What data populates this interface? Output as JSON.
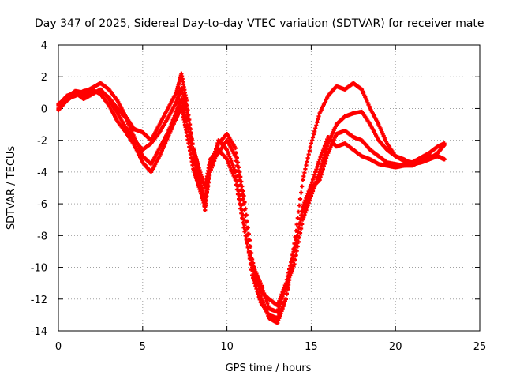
{
  "chart_data": {
    "type": "scatter",
    "title": "Day 347 of 2025, Sidereal Day-to-day VTEC variation (SDTVAR) for receiver mate",
    "xlabel": "GPS time / hours",
    "ylabel": "SDTVAR / TECUs",
    "xlim": [
      0,
      25
    ],
    "ylim": [
      -14,
      4
    ],
    "xticks": [
      0,
      5,
      10,
      15,
      20,
      25
    ],
    "yticks": [
      -14,
      -12,
      -10,
      -8,
      -6,
      -4,
      -2,
      0,
      2,
      4
    ],
    "grid": true,
    "marker": "plus",
    "color": "#ff0000",
    "series": [
      {
        "x": [
          0.0,
          0.5,
          1.0,
          1.5,
          2.0,
          2.5,
          3.0,
          3.5,
          4.0,
          4.5,
          5.0,
          5.5,
          6.0,
          6.5,
          7.0,
          7.3,
          7.6,
          8.0,
          8.3,
          8.7,
          9.0,
          9.5,
          10.0,
          10.5,
          11.0,
          11.5,
          12.0,
          12.5,
          13.0,
          13.5,
          14.0,
          14.5,
          15.0,
          15.5,
          16.0,
          16.5,
          17.0,
          17.5,
          18.0,
          18.5,
          19.0,
          19.5,
          20.0,
          20.5,
          21.0,
          21.5,
          22.0,
          22.5,
          22.9
        ],
        "y": [
          0.0,
          0.7,
          1.1,
          1.0,
          1.3,
          1.6,
          1.2,
          0.5,
          -0.5,
          -1.3,
          -1.5,
          -2.0,
          -1.0,
          0.0,
          1.0,
          2.2,
          0.5,
          -2.5,
          -4.0,
          -6.4,
          -3.5,
          -2.2,
          -1.6,
          -2.5,
          -5.5,
          -9.5,
          -11.8,
          -13.2,
          -13.5,
          -12.0,
          -8.5,
          -4.5,
          -2.2,
          -0.3,
          0.8,
          1.4,
          1.2,
          1.6,
          1.2,
          0.0,
          -1.0,
          -2.2,
          -3.0,
          -3.2,
          -3.5,
          -3.4,
          -3.2,
          -2.8,
          -2.3
        ]
      },
      {
        "x": [
          0.0,
          0.5,
          1.0,
          1.5,
          2.0,
          2.5,
          3.0,
          3.5,
          4.0,
          4.5,
          5.0,
          5.5,
          6.0,
          6.5,
          7.0,
          7.3,
          7.6,
          8.0,
          8.3,
          8.7,
          9.0,
          9.5,
          10.0,
          10.5,
          11.0,
          11.5,
          12.0,
          12.5,
          13.0,
          13.5,
          14.0,
          14.5,
          15.0,
          15.5,
          16.0,
          16.5,
          17.0,
          17.5,
          18.0,
          18.5,
          19.0,
          19.5,
          20.0,
          20.5,
          21.0,
          21.5,
          22.0,
          22.5,
          22.9
        ],
        "y": [
          0.2,
          0.8,
          1.0,
          0.6,
          0.9,
          1.2,
          0.6,
          -0.3,
          -1.2,
          -2.0,
          -2.6,
          -2.2,
          -1.5,
          -0.6,
          0.4,
          1.3,
          0.0,
          -2.5,
          -3.6,
          -5.0,
          -3.2,
          -2.8,
          -2.0,
          -3.0,
          -6.0,
          -9.8,
          -11.0,
          -12.6,
          -12.8,
          -11.2,
          -9.8,
          -7.0,
          -5.5,
          -4.0,
          -2.2,
          -1.0,
          -0.5,
          -0.3,
          -0.2,
          -1.0,
          -2.0,
          -2.6,
          -3.0,
          -3.3,
          -3.4,
          -3.1,
          -2.8,
          -2.4,
          -2.2
        ]
      },
      {
        "x": [
          0.0,
          0.5,
          1.0,
          1.5,
          2.0,
          2.5,
          3.0,
          3.5,
          4.0,
          4.5,
          5.0,
          5.5,
          6.0,
          6.5,
          7.0,
          7.3,
          7.6,
          8.0,
          8.3,
          8.7,
          9.0,
          9.5,
          10.0,
          10.5,
          11.0,
          11.5,
          12.0,
          12.5,
          13.0,
          13.5,
          14.0,
          14.5,
          15.0,
          15.5,
          16.0,
          16.5,
          17.0,
          17.5,
          18.0,
          18.5,
          19.0,
          19.5,
          20.0,
          20.5,
          21.0,
          21.5,
          22.0,
          22.5,
          22.9
        ],
        "y": [
          -0.1,
          0.5,
          0.9,
          0.8,
          1.0,
          1.1,
          0.7,
          0.0,
          -0.6,
          -1.8,
          -3.0,
          -3.5,
          -2.5,
          -1.5,
          -0.2,
          0.6,
          -0.8,
          -3.0,
          -4.2,
          -5.8,
          -3.8,
          -2.0,
          -2.6,
          -4.0,
          -7.0,
          -10.5,
          -12.2,
          -13.0,
          -13.2,
          -12.0,
          -9.0,
          -6.5,
          -5.0,
          -4.5,
          -2.8,
          -1.6,
          -1.4,
          -1.8,
          -2.0,
          -2.6,
          -3.0,
          -3.4,
          -3.5,
          -3.6,
          -3.6,
          -3.3,
          -3.0,
          -3.0,
          -3.2
        ]
      },
      {
        "x": [
          0.0,
          0.5,
          1.0,
          1.5,
          2.0,
          2.5,
          3.0,
          3.5,
          4.0,
          4.5,
          5.0,
          5.5,
          6.0,
          6.5,
          7.0,
          7.3,
          7.6,
          8.0,
          8.3,
          8.7,
          9.0,
          9.5,
          10.0,
          10.5,
          11.0,
          11.5,
          12.0,
          12.5,
          13.0,
          13.5,
          14.0,
          14.5,
          15.0,
          15.5,
          16.0,
          16.5,
          17.0,
          17.5,
          18.0,
          18.5,
          19.0,
          19.5,
          20.0,
          20.5,
          21.0,
          21.5,
          22.0,
          22.5,
          22.9
        ],
        "y": [
          0.3,
          0.6,
          0.8,
          1.1,
          1.2,
          0.9,
          0.2,
          -0.8,
          -1.5,
          -2.3,
          -3.4,
          -4.0,
          -3.0,
          -1.8,
          -0.6,
          0.1,
          -1.5,
          -3.8,
          -4.8,
          -6.2,
          -4.0,
          -2.6,
          -3.2,
          -4.5,
          -7.5,
          -10.0,
          -11.5,
          -12.0,
          -12.4,
          -11.0,
          -8.8,
          -6.2,
          -4.8,
          -3.2,
          -1.8,
          -2.4,
          -2.2,
          -2.6,
          -3.0,
          -3.2,
          -3.5,
          -3.6,
          -3.7,
          -3.6,
          -3.5,
          -3.4,
          -3.2,
          -3.0,
          -3.2
        ]
      }
    ]
  }
}
